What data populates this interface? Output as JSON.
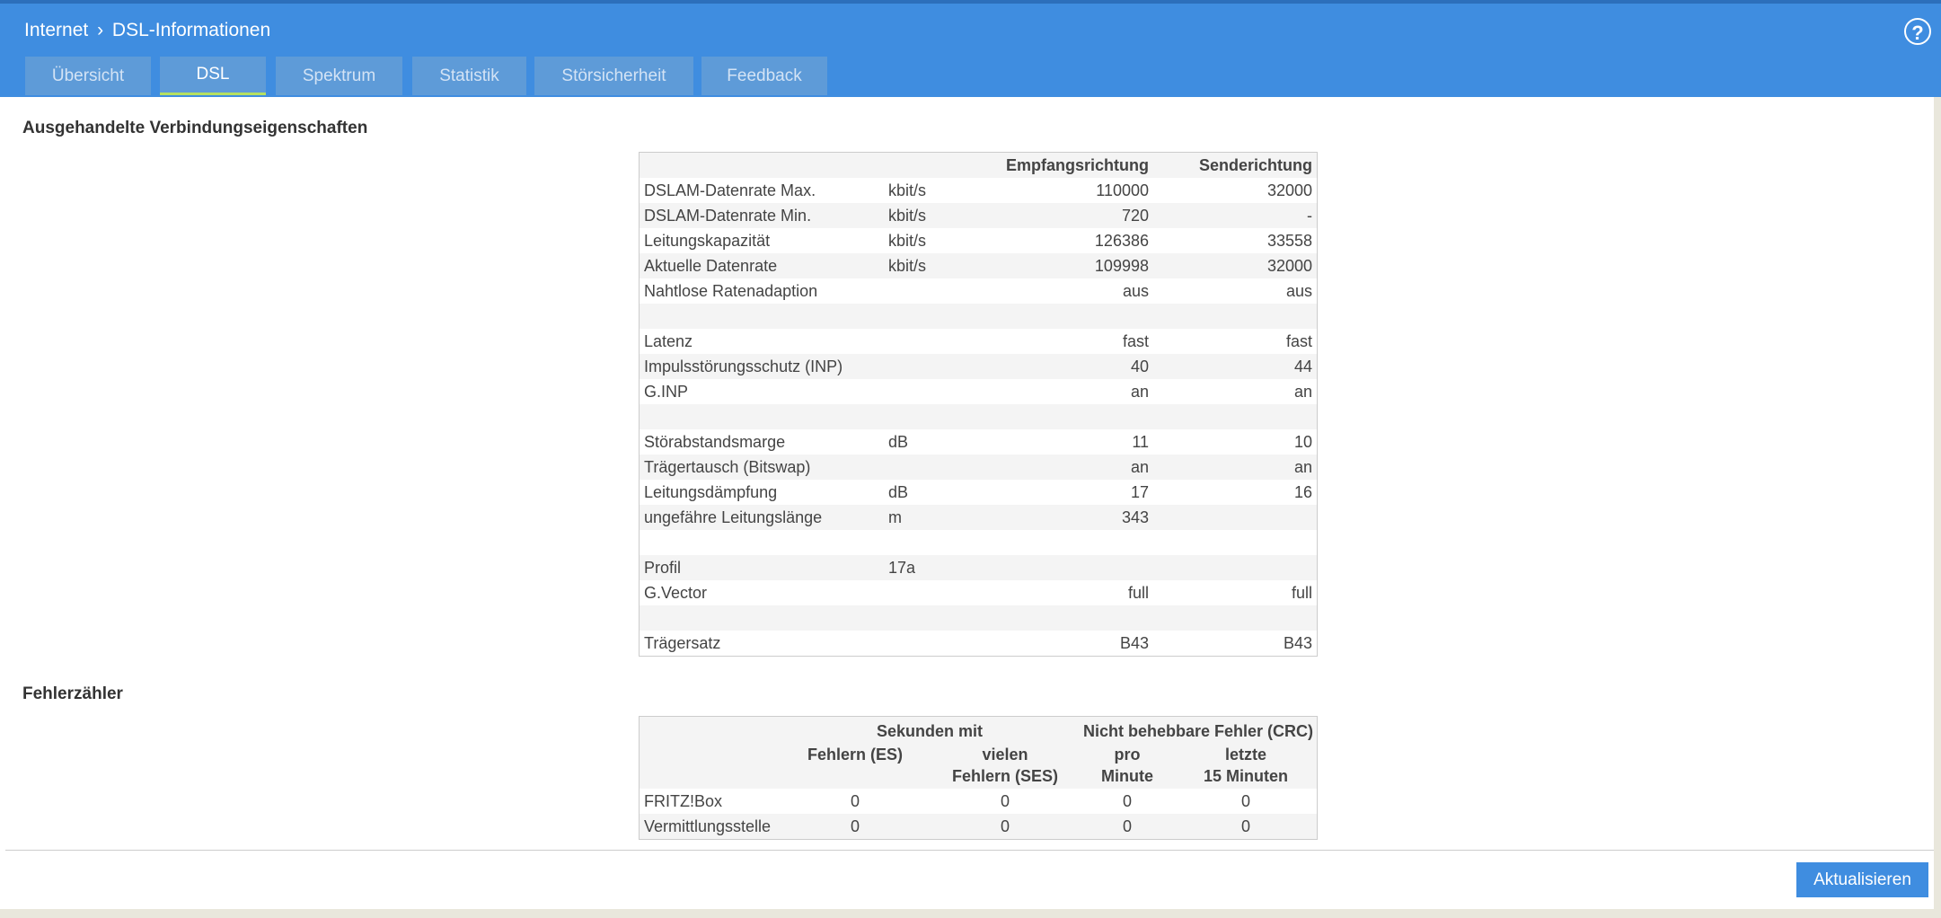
{
  "header": {
    "breadcrumb": [
      "Internet",
      "DSL-Informationen"
    ],
    "help": "?"
  },
  "tabs": [
    {
      "label": "Übersicht",
      "active": false
    },
    {
      "label": "DSL",
      "active": true
    },
    {
      "label": "Spektrum",
      "active": false
    },
    {
      "label": "Statistik",
      "active": false
    },
    {
      "label": "Störsicherheit",
      "active": false
    },
    {
      "label": "Feedback",
      "active": false
    }
  ],
  "connection": {
    "title": "Ausgehandelte Verbindungseigenschaften",
    "columns": [
      "Empfangsrichtung",
      "Senderichtung"
    ],
    "rows": [
      {
        "label": "DSLAM-Datenrate Max.",
        "unit": "kbit/s",
        "rx": 110000,
        "tx": 32000
      },
      {
        "label": "DSLAM-Datenrate Min.",
        "unit": "kbit/s",
        "rx": 720,
        "tx": "-"
      },
      {
        "label": "Leitungskapazität",
        "unit": "kbit/s",
        "rx": 126386,
        "tx": 33558
      },
      {
        "label": "Aktuelle Datenrate",
        "unit": "kbit/s",
        "rx": 109998,
        "tx": 32000
      },
      {
        "label": "Nahtlose Ratenadaption",
        "rx": "aus",
        "tx": "aus"
      },
      null,
      {
        "label": "Latenz",
        "rx": "fast",
        "tx": "fast"
      },
      {
        "label": "Impulsstörungsschutz (INP)",
        "rx": 40,
        "tx": 44
      },
      {
        "label": "G.INP",
        "rx": "an",
        "tx": "an"
      },
      null,
      {
        "label": "Störabstandsmarge",
        "unit": "dB",
        "rx": 11,
        "tx": 10
      },
      {
        "label": "Trägertausch (Bitswap)",
        "rx": "an",
        "tx": "an"
      },
      {
        "label": "Leitungsdämpfung",
        "unit": "dB",
        "rx": 17,
        "tx": 16
      },
      {
        "label": "ungefähre Leitungslänge",
        "unit": "m",
        "rx": 343
      },
      null,
      {
        "label": "Profil",
        "unit": "17a"
      },
      {
        "label": "G.Vector",
        "rx": "full",
        "tx": "full"
      },
      null,
      {
        "label": "Trägersatz",
        "rx": "B43",
        "tx": "B43"
      }
    ]
  },
  "errors": {
    "title": "Fehlerzähler",
    "groups": [
      "Sekunden mit",
      "Nicht behebbare Fehler (CRC)"
    ],
    "columns": [
      [
        "Fehlern (ES)"
      ],
      [
        "vielen",
        "Fehlern (SES)"
      ],
      [
        "pro",
        "Minute"
      ],
      [
        "letzte",
        "15 Minuten"
      ]
    ],
    "rows": [
      {
        "label": "FRITZ!Box",
        "values": [
          0,
          0,
          0,
          0
        ]
      },
      {
        "label": "Vermittlungsstelle",
        "values": [
          0,
          0,
          0,
          0
        ]
      }
    ]
  },
  "button": "Aktualisieren"
}
